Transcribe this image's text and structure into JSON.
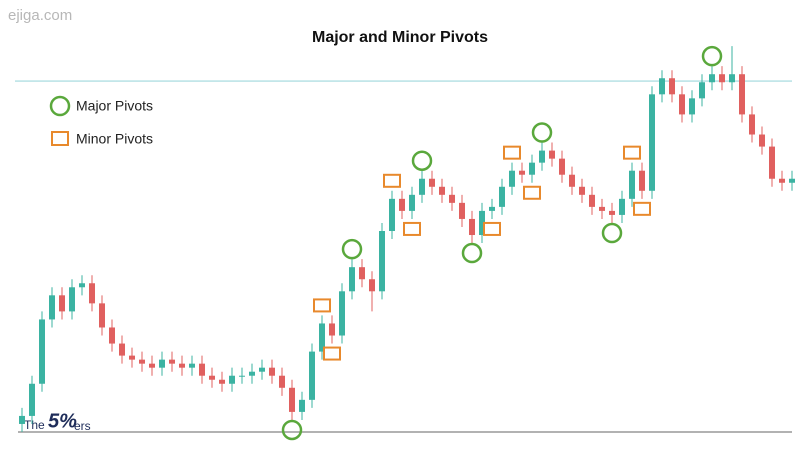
{
  "watermark": "ejiga.com",
  "logo": {
    "prefix": "The",
    "mark": "5%",
    "suffix": "ers"
  },
  "chart_data": {
    "type": "candlestick",
    "title": "Major and Minor Pivots",
    "ylim": [
      0,
      100
    ],
    "up_color": "#3bb3a2",
    "down_color": "#e0605f",
    "resistance_line": 87.3,
    "resistance_color": "#9fd8dc",
    "open": [
      2,
      4,
      12,
      28,
      34,
      30,
      36,
      37,
      32,
      26,
      22,
      19,
      18,
      17,
      16,
      18,
      17,
      16,
      17,
      14,
      13,
      12,
      14,
      14,
      15,
      16,
      14,
      11,
      5,
      8,
      20,
      27,
      24,
      35,
      41,
      38,
      35,
      50,
      58,
      55,
      59,
      63,
      61,
      59,
      57,
      53,
      49,
      55,
      56,
      61,
      65,
      64,
      67,
      70,
      68,
      64,
      61,
      59,
      56,
      55,
      54,
      58,
      65,
      60,
      84,
      88,
      84,
      79,
      83,
      87,
      89,
      87,
      89,
      79,
      74,
      71,
      63,
      62
    ],
    "high": [
      6,
      14,
      30,
      36,
      36,
      38,
      39,
      39,
      34,
      28,
      24,
      21,
      20,
      19,
      20,
      20,
      19,
      19,
      19,
      16,
      15,
      16,
      16,
      17,
      18,
      18,
      16,
      13,
      10,
      22,
      29,
      29,
      37,
      43,
      43,
      40,
      52,
      60,
      60,
      61,
      65,
      65,
      63,
      61,
      59,
      55,
      57,
      58,
      63,
      67,
      67,
      69,
      72,
      72,
      70,
      66,
      63,
      61,
      58,
      57,
      60,
      67,
      67,
      86,
      90,
      90,
      86,
      85,
      89,
      91,
      91,
      96,
      91,
      81,
      76,
      73,
      65,
      65
    ],
    "low": [
      0,
      2,
      10,
      26,
      28,
      28,
      34,
      30,
      24,
      20,
      17,
      16,
      15,
      14,
      14,
      15,
      14,
      14,
      12,
      11,
      10,
      10,
      12,
      12,
      13,
      12,
      9,
      3,
      3,
      6,
      18,
      22,
      22,
      33,
      36,
      30,
      33,
      48,
      53,
      53,
      57,
      59,
      57,
      55,
      51,
      47,
      47,
      53,
      54,
      59,
      62,
      62,
      65,
      66,
      62,
      59,
      57,
      54,
      53,
      52,
      52,
      56,
      58,
      58,
      82,
      82,
      77,
      77,
      81,
      85,
      85,
      85,
      77,
      72,
      69,
      61,
      60,
      60
    ],
    "close": [
      4,
      12,
      28,
      34,
      30,
      36,
      37,
      32,
      26,
      22,
      19,
      18,
      17,
      16,
      18,
      17,
      16,
      17,
      14,
      13,
      12,
      14,
      14,
      15,
      16,
      14,
      11,
      5,
      8,
      20,
      27,
      24,
      35,
      41,
      38,
      35,
      50,
      58,
      55,
      59,
      63,
      61,
      59,
      57,
      53,
      49,
      55,
      56,
      61,
      65,
      64,
      67,
      70,
      68,
      64,
      61,
      59,
      56,
      55,
      54,
      58,
      65,
      60,
      84,
      88,
      84,
      79,
      83,
      87,
      89,
      87,
      89,
      79,
      74,
      71,
      63,
      62,
      63
    ],
    "major_pivot_highs": [
      33,
      40,
      52,
      69
    ],
    "major_pivot_lows": [
      27,
      45,
      59
    ],
    "minor_pivot_highs": [
      30,
      37,
      49,
      61
    ],
    "minor_pivot_lows": [
      31,
      39,
      47,
      51,
      62
    ],
    "major_color": "#5aa83c",
    "minor_color": "#e8892c",
    "legend": {
      "major": "Major Pivots",
      "minor": "Minor Pivots"
    }
  }
}
